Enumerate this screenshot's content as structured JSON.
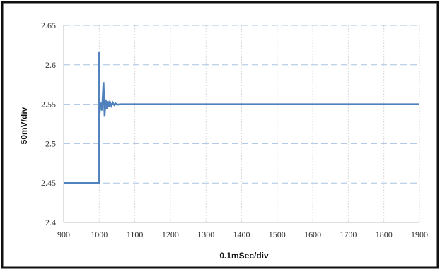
{
  "chart_data": {
    "type": "line",
    "title": "",
    "xlabel": "0.1mSec/div",
    "ylabel": "50mV/div",
    "xlim": [
      900,
      1900
    ],
    "ylim": [
      2.4,
      2.65
    ],
    "x_ticks": [
      "900",
      "1000",
      "1100",
      "1200",
      "1300",
      "1400",
      "1500",
      "1600",
      "1700",
      "1800",
      "1900"
    ],
    "y_ticks": [
      "2.4",
      "2.45",
      "2.5",
      "2.55",
      "2.6",
      "2.65"
    ],
    "grid": "dashed",
    "colors": {
      "line": "#4f81bd",
      "grid": "#a9c3e0",
      "border": "#111111"
    },
    "series": [
      {
        "x": [
          900,
          1000,
          1000,
          1001,
          1004,
          1008,
          1012,
          1015,
          1018,
          1021,
          1024,
          1027,
          1030,
          1034,
          1038,
          1042,
          1046,
          1050,
          1060,
          1100,
          1900
        ],
        "y": [
          2.45,
          2.45,
          2.617,
          2.538,
          2.552,
          2.542,
          2.578,
          2.535,
          2.556,
          2.544,
          2.554,
          2.547,
          2.553,
          2.548,
          2.552,
          2.549,
          2.551,
          2.5495,
          2.55,
          2.55,
          2.55
        ]
      }
    ]
  }
}
